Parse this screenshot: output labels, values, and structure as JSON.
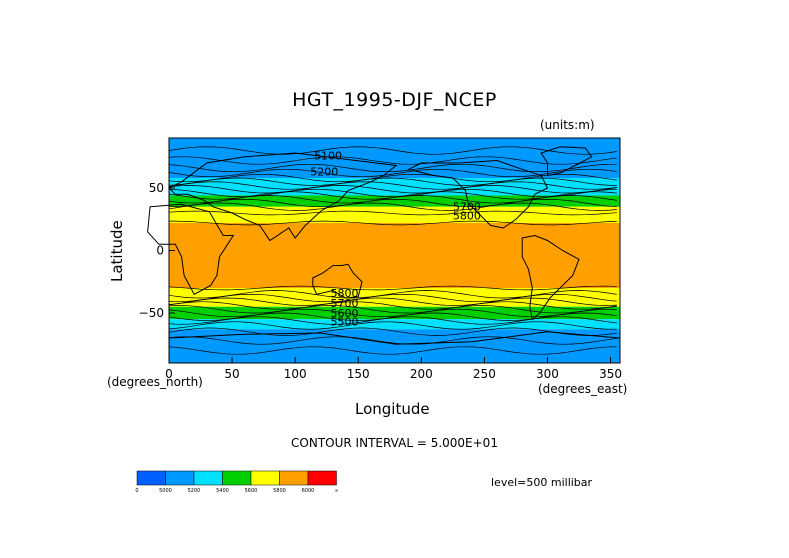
{
  "chart_data": {
    "type": "heatmap",
    "title": "HGT_1995-DJF_NCEP",
    "units_label": "(units:m)",
    "xlabel": "Longitude",
    "ylabel": "Latitude",
    "x_units": "(degrees_east)",
    "y_units": "(degrees_north)",
    "xlim": [
      0,
      357.5
    ],
    "ylim": [
      -90,
      90
    ],
    "xticks": [
      "0",
      "50",
      "100",
      "150",
      "200",
      "250",
      "300",
      "350"
    ],
    "xtick_values": [
      0,
      50,
      100,
      150,
      200,
      250,
      300,
      350
    ],
    "yticks": [
      "50",
      "0",
      "−50"
    ],
    "ytick_values": [
      50,
      0,
      -50
    ],
    "contour_interval": "CONTOUR INTERVAL = 5.000E+01",
    "level": "level=500 millibar",
    "contour_labels": [
      {
        "text": "5100",
        "lon": 115,
        "lat": 73
      },
      {
        "text": "5200",
        "lon": 112,
        "lat": 60
      },
      {
        "text": "5700",
        "lon": 225,
        "lat": 32
      },
      {
        "text": "5800",
        "lon": 225,
        "lat": 25
      },
      {
        "text": "5800",
        "lon": 128,
        "lat": -37
      },
      {
        "text": "5700",
        "lon": 128,
        "lat": -45
      },
      {
        "text": "5600",
        "lon": 128,
        "lat": -53
      },
      {
        "text": "5500",
        "lon": 128,
        "lat": -60
      }
    ],
    "colorbar": {
      "colors": [
        "#0060ff",
        "#0099ff",
        "#00e0ff",
        "#00d000",
        "#ffff00",
        "#ffa000",
        "#ff0000"
      ],
      "labels": [
        "0",
        "5000",
        "5200",
        "5400",
        "5600",
        "5800",
        "6000",
        "∞"
      ]
    },
    "bands": [
      {
        "lat_top": 90,
        "lat_bottom": 58,
        "color": "#0099ff"
      },
      {
        "lat_top": 58,
        "lat_bottom": 44,
        "color": "#00e0ff"
      },
      {
        "lat_top": 44,
        "lat_bottom": 35,
        "color": "#00d000"
      },
      {
        "lat_top": 35,
        "lat_bottom": 22,
        "color": "#ffff00"
      },
      {
        "lat_top": 22,
        "lat_bottom": -30,
        "color": "#ffa000"
      },
      {
        "lat_top": -30,
        "lat_bottom": -45,
        "color": "#ffff00"
      },
      {
        "lat_top": -45,
        "lat_bottom": -55,
        "color": "#00d000"
      },
      {
        "lat_top": -55,
        "lat_bottom": -63,
        "color": "#00e0ff"
      },
      {
        "lat_top": -63,
        "lat_bottom": -90,
        "color": "#0099ff"
      }
    ]
  }
}
